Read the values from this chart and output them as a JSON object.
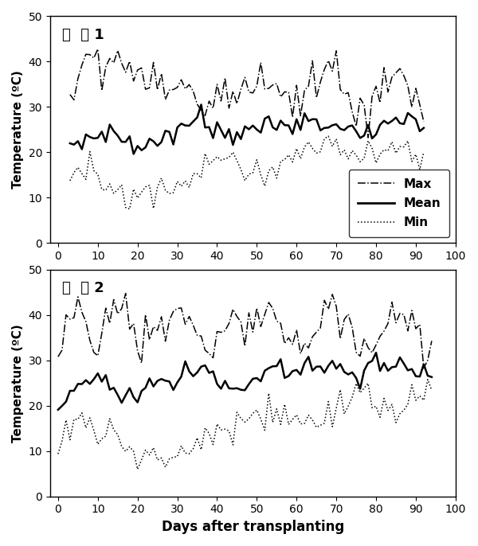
{
  "title1": "시  험 1",
  "title2": "시  험 2",
  "xlabel": "Days after transplanting",
  "ylabel": "Temperature (ºC)",
  "xlim": [
    -2,
    100
  ],
  "ylim": [
    0,
    50
  ],
  "xticks": [
    0,
    10,
    20,
    30,
    40,
    50,
    60,
    70,
    80,
    90,
    100
  ],
  "yticks": [
    0,
    10,
    20,
    30,
    40,
    50
  ],
  "legend_labels": [
    "Max",
    "Mean",
    "Min"
  ],
  "figsize": [
    6.0,
    6.86
  ],
  "dpi": 100
}
